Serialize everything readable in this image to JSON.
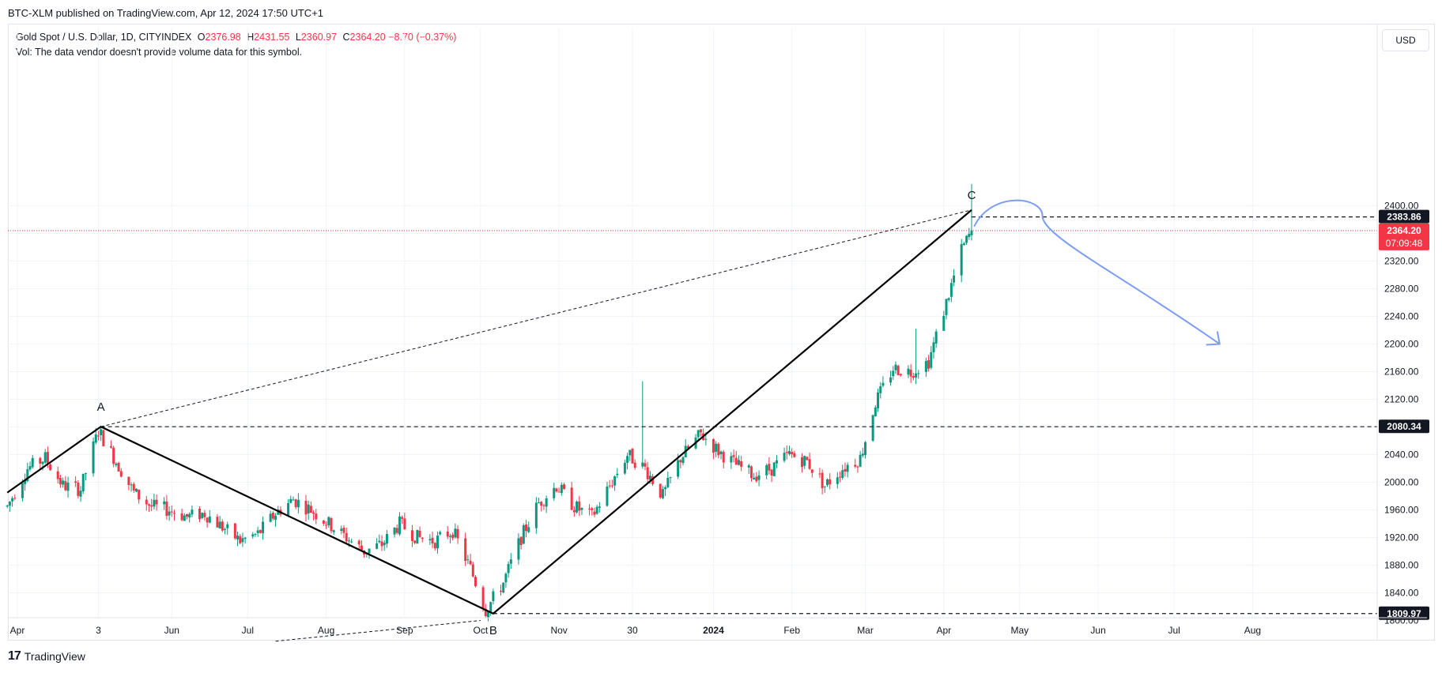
{
  "header": {
    "published_text": "BTC-XLM published on TradingView.com, Apr 12, 2024 17:50 UTC+1"
  },
  "legend": {
    "symbol": "Gold Spot / U.S. Dollar, 1D, CITYINDEX",
    "o_label": "O",
    "o_value": "2376.98",
    "h_label": "H",
    "h_value": "2431.55",
    "l_label": "L",
    "l_value": "2360.97",
    "c_label": "C",
    "c_value": "2364.20",
    "change": "−8.70 (−0.37%)",
    "volume_note": "Vol: The data vendor doesn't provide volume data for this symbol."
  },
  "currency_button": "USD",
  "footer": {
    "brand": "TradingView",
    "logo_glyph": "17"
  },
  "colors": {
    "up": "#089981",
    "down": "#f23645",
    "projection": "#7b9cf2",
    "pattern": "#000000",
    "grid": "#f0f3fa"
  },
  "chart_data": {
    "type": "candlestick",
    "ylim": [
      1780,
      2440
    ],
    "y_ticks": [
      "2400.00",
      "2360.00",
      "2320.00",
      "2280.00",
      "2240.00",
      "2200.00",
      "2160.00",
      "2120.00",
      "2080.00",
      "2040.00",
      "2000.00",
      "1960.00",
      "1920.00",
      "1880.00",
      "1840.00",
      "1800.00"
    ],
    "x_ticks": [
      {
        "label": "Apr",
        "date": "2023-04-01",
        "bold": false
      },
      {
        "label": "3",
        "date": "2023-05-03",
        "bold": false
      },
      {
        "label": "Jun",
        "date": "2023-06-01",
        "bold": false
      },
      {
        "label": "Jul",
        "date": "2023-07-01",
        "bold": false
      },
      {
        "label": "Aug",
        "date": "2023-08-01",
        "bold": false
      },
      {
        "label": "Sep",
        "date": "2023-09-01",
        "bold": false
      },
      {
        "label": "Oct",
        "date": "2023-10-01",
        "bold": false
      },
      {
        "label": "Nov",
        "date": "2023-11-01",
        "bold": false
      },
      {
        "label": "30",
        "date": "2023-11-30",
        "bold": false
      },
      {
        "label": "2024",
        "date": "2024-01-01",
        "bold": true
      },
      {
        "label": "Feb",
        "date": "2024-02-01",
        "bold": false
      },
      {
        "label": "Mar",
        "date": "2024-03-01",
        "bold": false
      },
      {
        "label": "Apr",
        "date": "2024-04-01",
        "bold": false
      },
      {
        "label": "May",
        "date": "2024-05-01",
        "bold": false
      },
      {
        "label": "Jun",
        "date": "2024-06-01",
        "bold": false
      },
      {
        "label": "Jul",
        "date": "2024-07-01",
        "bold": false
      },
      {
        "label": "Aug",
        "date": "2024-08-01",
        "bold": false
      }
    ],
    "price_path": [
      [
        "2023-03-28",
        1965
      ],
      [
        "2023-04-05",
        2020
      ],
      [
        "2023-04-12",
        2035
      ],
      [
        "2023-04-19",
        1995
      ],
      [
        "2023-04-26",
        1990
      ],
      [
        "2023-05-03",
        2075
      ],
      [
        "2023-05-10",
        2030
      ],
      [
        "2023-05-17",
        1985
      ],
      [
        "2023-05-24",
        1965
      ],
      [
        "2023-05-31",
        1960
      ],
      [
        "2023-06-07",
        1950
      ],
      [
        "2023-06-14",
        1955
      ],
      [
        "2023-06-21",
        1935
      ],
      [
        "2023-06-28",
        1915
      ],
      [
        "2023-07-05",
        1925
      ],
      [
        "2023-07-12",
        1955
      ],
      [
        "2023-07-19",
        1975
      ],
      [
        "2023-07-26",
        1960
      ],
      [
        "2023-08-02",
        1940
      ],
      [
        "2023-08-09",
        1920
      ],
      [
        "2023-08-16",
        1900
      ],
      [
        "2023-08-23",
        1910
      ],
      [
        "2023-08-30",
        1940
      ],
      [
        "2023-09-06",
        1920
      ],
      [
        "2023-09-13",
        1915
      ],
      [
        "2023-09-20",
        1930
      ],
      [
        "2023-09-27",
        1875
      ],
      [
        "2023-10-03",
        1815
      ],
      [
        "2023-10-10",
        1855
      ],
      [
        "2023-10-17",
        1920
      ],
      [
        "2023-10-24",
        1970
      ],
      [
        "2023-10-31",
        1995
      ],
      [
        "2023-11-07",
        1965
      ],
      [
        "2023-11-14",
        1950
      ],
      [
        "2023-11-21",
        1995
      ],
      [
        "2023-11-28",
        2040
      ],
      [
        "2023-12-05",
        2020
      ],
      [
        "2023-12-12",
        1980
      ],
      [
        "2023-12-19",
        2035
      ],
      [
        "2023-12-27",
        2070
      ],
      [
        "2024-01-03",
        2045
      ],
      [
        "2024-01-10",
        2025
      ],
      [
        "2024-01-17",
        2010
      ],
      [
        "2024-01-24",
        2020
      ],
      [
        "2024-01-31",
        2040
      ],
      [
        "2024-02-07",
        2030
      ],
      [
        "2024-02-14",
        1995
      ],
      [
        "2024-02-21",
        2020
      ],
      [
        "2024-02-28",
        2035
      ],
      [
        "2024-03-05",
        2115
      ],
      [
        "2024-03-12",
        2165
      ],
      [
        "2024-03-19",
        2160
      ],
      [
        "2024-03-26",
        2175
      ],
      [
        "2024-04-02",
        2260
      ],
      [
        "2024-04-08",
        2335
      ],
      [
        "2024-04-12",
        2364.2
      ]
    ],
    "wick_spikes": [
      {
        "date": "2023-12-04",
        "high": 2146
      },
      {
        "date": "2024-03-21",
        "high": 2222
      },
      {
        "date": "2024-04-12",
        "high": 2431.55
      }
    ],
    "pattern_points": [
      {
        "label": "A",
        "date": "2023-05-04",
        "price": 2080.34
      },
      {
        "label": "B",
        "date": "2023-10-06",
        "price": 1809.97
      },
      {
        "label": "C",
        "date": "2024-04-12",
        "price": 2394
      }
    ],
    "pattern_start": {
      "date": "2023-03-28",
      "price": 1985
    },
    "channel_line": {
      "from": {
        "date": "2023-07-12",
        "price": 1770
      },
      "to": {
        "date": "2023-10-01",
        "price": 1800
      }
    },
    "levels": [
      {
        "price": 2383.86,
        "label": "2383.86",
        "from_date": "2024-04-12"
      },
      {
        "price": 2080.34,
        "label": "2080.34",
        "from_date": "2023-05-04"
      },
      {
        "price": 1809.97,
        "label": "1809.97",
        "from_date": "2023-10-06"
      }
    ],
    "last_price": {
      "price": 2364.2,
      "label": "2364.20",
      "countdown": "07:09:48"
    },
    "projection": [
      {
        "date": "2024-04-13",
        "price": 2370
      },
      {
        "date": "2024-04-20",
        "price": 2405
      },
      {
        "date": "2024-05-10",
        "price": 2385
      },
      {
        "date": "2024-06-10",
        "price": 2300
      },
      {
        "date": "2024-07-19",
        "price": 2200
      }
    ]
  }
}
